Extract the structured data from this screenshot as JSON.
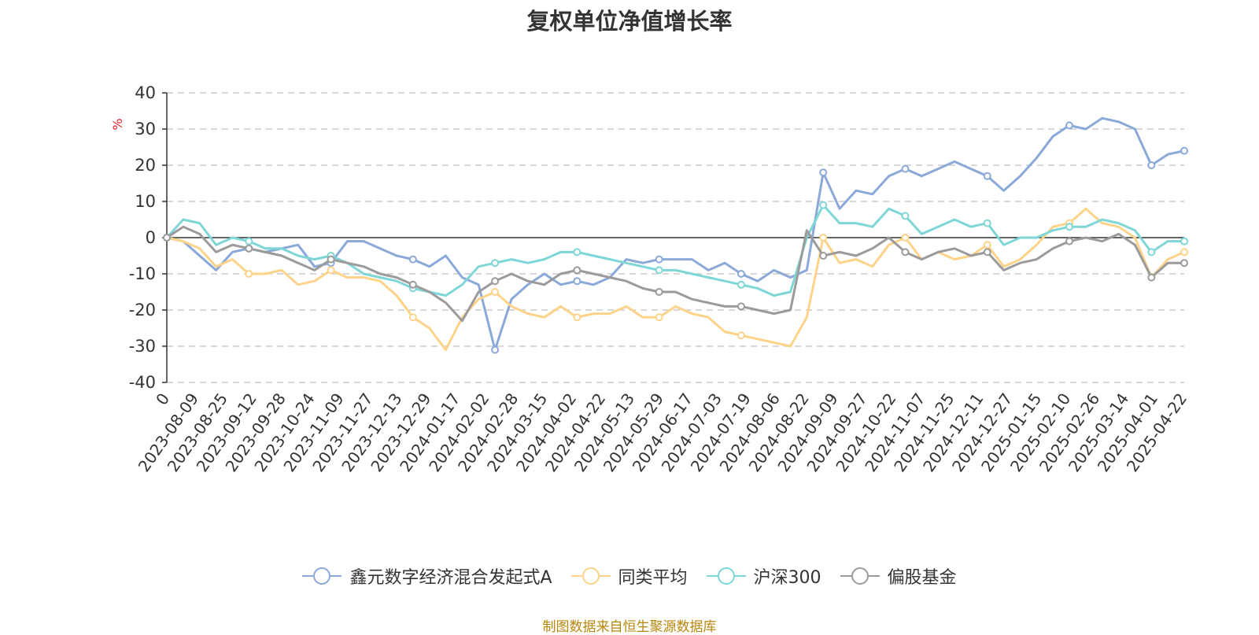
{
  "chart_data": {
    "type": "line",
    "title": "复权单位净值增长率",
    "ylabel": "%",
    "ylim": [
      -40,
      40
    ],
    "yticks": [
      40,
      30,
      20,
      10,
      0,
      -10,
      -20,
      -30,
      -40
    ],
    "grid": true,
    "legend_position": "bottom",
    "x_tick_labels": [
      "0",
      "2023-08-09",
      "2023-08-25",
      "2023-09-12",
      "2023-09-28",
      "2023-10-24",
      "2023-11-09",
      "2023-11-27",
      "2023-12-13",
      "2023-12-29",
      "2024-01-17",
      "2024-02-02",
      "2024-02-28",
      "2024-03-15",
      "2024-04-02",
      "2024-04-22",
      "2024-05-13",
      "2024-05-29",
      "2024-06-17",
      "2024-07-03",
      "2024-07-19",
      "2024-08-06",
      "2024-08-22",
      "2024-09-09",
      "2024-09-27",
      "2024-10-22",
      "2024-11-07",
      "2024-11-25",
      "2024-12-11",
      "2024-12-27",
      "2025-01-15",
      "2025-02-10",
      "2025-02-26",
      "2025-03-14",
      "2025-04-01",
      "2025-04-22"
    ],
    "series": [
      {
        "name": "鑫元数字经济混合发起式A",
        "color": "#8aa8d8",
        "values": [
          0,
          -1,
          -5,
          -9,
          -4,
          -3,
          -4,
          -3,
          -2,
          -8,
          -7,
          -1,
          -1,
          -3,
          -5,
          -6,
          -8,
          -5,
          -11,
          -13,
          -31,
          -17,
          -13,
          -10,
          -13,
          -12,
          -13,
          -11,
          -6,
          -7,
          -6,
          -6,
          -6,
          -9,
          -7,
          -10,
          -12,
          -9,
          -11,
          -9,
          18,
          8,
          13,
          12,
          17,
          19,
          17,
          19,
          21,
          19,
          17,
          13,
          17,
          22,
          28,
          31,
          30,
          33,
          32,
          30,
          20,
          23,
          24
        ]
      },
      {
        "name": "同类平均",
        "color": "#fdd38a",
        "values": [
          0,
          -1,
          -3,
          -8,
          -6,
          -10,
          -10,
          -9,
          -13,
          -12,
          -9,
          -11,
          -11,
          -12,
          -16,
          -22,
          -25,
          -31,
          -22,
          -17,
          -15,
          -19,
          -21,
          -22,
          -19,
          -22,
          -21,
          -21,
          -19,
          -22,
          -22,
          -19,
          -21,
          -22,
          -26,
          -27,
          -28,
          -29,
          -30,
          -22,
          0,
          -7,
          -6,
          -8,
          -2,
          0,
          -6,
          -4,
          -6,
          -5,
          -2,
          -8,
          -6,
          -2,
          3,
          4,
          8,
          4,
          3,
          0,
          -11,
          -6,
          -4
        ]
      },
      {
        "name": "沪深300",
        "color": "#7fd6d6",
        "values": [
          0,
          5,
          4,
          -2,
          0,
          -1,
          -3,
          -3,
          -5,
          -6,
          -5,
          -7,
          -10,
          -11,
          -12,
          -14,
          -15,
          -16,
          -13,
          -8,
          -7,
          -6,
          -7,
          -6,
          -4,
          -4,
          -5,
          -6,
          -7,
          -8,
          -9,
          -9,
          -10,
          -11,
          -12,
          -13,
          -14,
          -16,
          -15,
          0,
          9,
          4,
          4,
          3,
          8,
          6,
          1,
          3,
          5,
          3,
          4,
          -2,
          0,
          0,
          2,
          3,
          3,
          5,
          4,
          2,
          -4,
          -1,
          -1
        ]
      },
      {
        "name": "偏股基金",
        "color": "#9b9b9b",
        "values": [
          0,
          3,
          1,
          -4,
          -2,
          -3,
          -4,
          -5,
          -7,
          -9,
          -6,
          -7,
          -8,
          -10,
          -11,
          -13,
          -15,
          -18,
          -23,
          -15,
          -12,
          -10,
          -12,
          -13,
          -10,
          -9,
          -10,
          -11,
          -12,
          -14,
          -15,
          -15,
          -17,
          -18,
          -19,
          -19,
          -20,
          -21,
          -20,
          2,
          -5,
          -4,
          -5,
          -3,
          0,
          -4,
          -6,
          -4,
          -3,
          -5,
          -4,
          -9,
          -7,
          -6,
          -3,
          -1,
          0,
          -1,
          1,
          -2,
          -11,
          -7,
          -7
        ]
      }
    ]
  },
  "legend": [
    "鑫元数字经济混合发起式A",
    "同类平均",
    "沪深300",
    "偏股基金"
  ],
  "source_note": "制图数据来自恒生聚源数据库"
}
